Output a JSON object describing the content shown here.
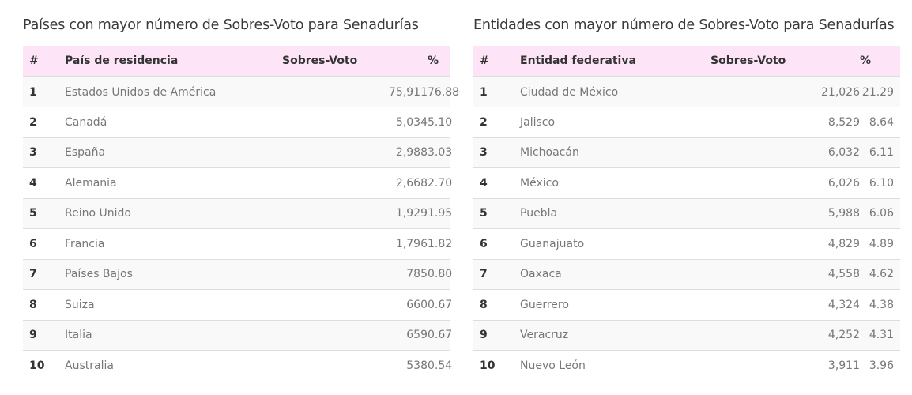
{
  "left": {
    "title": "Países con mayor número de Sobres-Voto para Senadurías",
    "headers": [
      "#",
      "País de residencia",
      "Sobres-Voto",
      "%"
    ],
    "rows": [
      [
        "1",
        "Estados Unidos de América",
        "75,911",
        "76.88"
      ],
      [
        "2",
        "Canadá",
        "5,034",
        "5.10"
      ],
      [
        "3",
        "España",
        "2,988",
        "3.03"
      ],
      [
        "4",
        "Alemania",
        "2,668",
        "2.70"
      ],
      [
        "5",
        "Reino Unido",
        "1,929",
        "1.95"
      ],
      [
        "6",
        "Francia",
        "1,796",
        "1.82"
      ],
      [
        "7",
        "Países Bajos",
        "785",
        "0.80"
      ],
      [
        "8",
        "Suiza",
        "660",
        "0.67"
      ],
      [
        "9",
        "Italia",
        "659",
        "0.67"
      ],
      [
        "10",
        "Australia",
        "538",
        "0.54"
      ]
    ]
  },
  "right": {
    "title": "Entidades con mayor número de Sobres-Voto para Senadurías",
    "headers": [
      "#",
      "Entidad federativa",
      "Sobres-Voto",
      "%"
    ],
    "rows": [
      [
        "1",
        "Ciudad de México",
        "21,026",
        "21.29"
      ],
      [
        "2",
        "Jalisco",
        "8,529",
        "8.64"
      ],
      [
        "3",
        "Michoacán",
        "6,032",
        "6.11"
      ],
      [
        "4",
        "México",
        "6,026",
        "6.10"
      ],
      [
        "5",
        "Puebla",
        "5,988",
        "6.06"
      ],
      [
        "6",
        "Guanajuato",
        "4,829",
        "4.89"
      ],
      [
        "7",
        "Oaxaca",
        "4,558",
        "4.62"
      ],
      [
        "8",
        "Guerrero",
        "4,324",
        "4.38"
      ],
      [
        "9",
        "Veracruz",
        "4,252",
        "4.31"
      ],
      [
        "10",
        "Nuevo León",
        "3,911",
        "3.96"
      ]
    ]
  },
  "colors": {
    "header_bg": "#fde4f6",
    "stripe": "#f9f9f9"
  }
}
